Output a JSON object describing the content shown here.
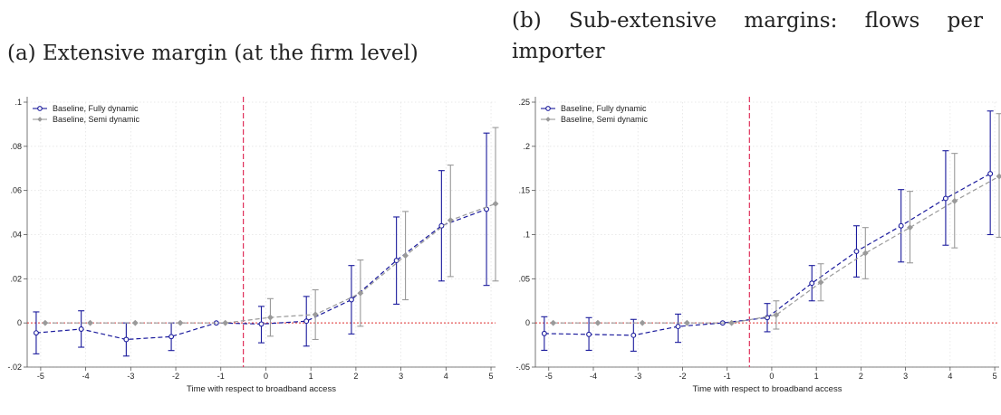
{
  "captions": {
    "a": "(a) Extensive margin (at the firm level)",
    "b": "(b) Sub-extensive margins: flows per importer"
  },
  "chart_data": [
    {
      "type": "line",
      "xlabel": "Time with respect to broadband access",
      "ylabel": "",
      "xlim": [
        -5.3,
        5.1
      ],
      "ylim": [
        -0.02,
        0.1
      ],
      "yticks": [
        -0.02,
        0,
        0.02,
        0.04,
        0.06,
        0.08,
        0.1
      ],
      "ytick_labels": [
        "-.02",
        "0",
        ".02",
        ".04",
        ".06",
        ".08",
        ".1"
      ],
      "xticks": [
        -5,
        -4,
        -3,
        -2,
        -1,
        0,
        1,
        2,
        3,
        4,
        5
      ],
      "xtick_labels": [
        "-5",
        "-4",
        "-3",
        "-2",
        "-1",
        "0",
        "1",
        "2",
        "3",
        "4",
        "5"
      ],
      "grid": true,
      "legend_position": "top-left",
      "event_line_x": -0.5,
      "zero_line_y": 0,
      "series": [
        {
          "name": "Baseline, Fully dynamic",
          "color": "#1a1a9c",
          "marker": "circle",
          "x": [
            -5.1,
            -4.1,
            -3.1,
            -2.1,
            -1.1,
            -0.1,
            0.9,
            1.9,
            2.9,
            3.9,
            4.9
          ],
          "y": [
            -0.0045,
            -0.0028,
            -0.0075,
            -0.0062,
            0.0,
            -0.0005,
            0.0008,
            0.0105,
            0.0283,
            0.044,
            0.0515
          ],
          "ci_low": [
            -0.014,
            -0.011,
            -0.015,
            -0.0125,
            0.0,
            -0.009,
            -0.0105,
            -0.005,
            0.0085,
            0.019,
            0.017
          ],
          "ci_high": [
            0.005,
            0.0055,
            0.0,
            0.0,
            0.0,
            0.0075,
            0.012,
            0.026,
            0.048,
            0.069,
            0.086
          ]
        },
        {
          "name": "Baseline, Semi dynamic",
          "color": "#9a9a9a",
          "marker": "diamond",
          "x": [
            -4.9,
            -3.9,
            -2.9,
            -1.9,
            -0.9,
            0.1,
            1.1,
            2.1,
            3.1,
            4.1,
            5.1
          ],
          "y": [
            0.0,
            0.0,
            0.0,
            0.0,
            0.0,
            0.0025,
            0.0038,
            0.0135,
            0.0305,
            0.0465,
            0.054
          ],
          "ci_low": [
            0.0,
            0.0,
            0.0,
            0.0,
            0.0,
            -0.006,
            -0.0075,
            -0.0015,
            0.0105,
            0.021,
            0.019
          ],
          "ci_high": [
            0.0,
            0.0,
            0.0,
            0.0,
            0.0,
            0.011,
            0.015,
            0.0285,
            0.0505,
            0.0715,
            0.0885
          ]
        }
      ]
    },
    {
      "type": "line",
      "xlabel": "Time with respect to broadband access",
      "ylabel": "",
      "xlim": [
        -5.3,
        5.1
      ],
      "ylim": [
        -0.05,
        0.25
      ],
      "yticks": [
        -0.05,
        0,
        0.05,
        0.1,
        0.15,
        0.2,
        0.25
      ],
      "ytick_labels": [
        "-.05",
        "0",
        ".05",
        ".1",
        ".15",
        ".2",
        ".25"
      ],
      "xticks": [
        -5,
        -4,
        -3,
        -2,
        -1,
        0,
        1,
        2,
        3,
        4,
        5
      ],
      "xtick_labels": [
        "-5",
        "-4",
        "-3",
        "-2",
        "-1",
        "0",
        "1",
        "2",
        "3",
        "4",
        "5"
      ],
      "grid": true,
      "legend_position": "top-left",
      "event_line_x": -0.5,
      "zero_line_y": 0,
      "series": [
        {
          "name": "Baseline, Fully dynamic",
          "color": "#1a1a9c",
          "marker": "circle",
          "x": [
            -5.1,
            -4.1,
            -3.1,
            -2.1,
            -1.1,
            -0.1,
            0.9,
            1.9,
            2.9,
            3.9,
            4.9
          ],
          "y": [
            -0.012,
            -0.013,
            -0.014,
            -0.004,
            0.0,
            0.006,
            0.045,
            0.081,
            0.11,
            0.141,
            0.169
          ],
          "ci_low": [
            -0.031,
            -0.031,
            -0.032,
            -0.022,
            0.0,
            -0.01,
            0.025,
            0.052,
            0.069,
            0.088,
            0.1
          ],
          "ci_high": [
            0.007,
            0.006,
            0.004,
            0.01,
            0.0,
            0.022,
            0.065,
            0.11,
            0.151,
            0.195,
            0.24
          ]
        },
        {
          "name": "Baseline, Semi dynamic",
          "color": "#9a9a9a",
          "marker": "diamond",
          "x": [
            -4.9,
            -3.9,
            -2.9,
            -1.9,
            -0.9,
            0.1,
            1.1,
            2.1,
            3.1,
            4.1,
            5.1
          ],
          "y": [
            0.0,
            0.0,
            0.0,
            0.0,
            0.0,
            0.009,
            0.046,
            0.079,
            0.108,
            0.138,
            0.166
          ],
          "ci_low": [
            0.0,
            0.0,
            0.0,
            0.0,
            0.0,
            -0.007,
            0.025,
            0.05,
            0.068,
            0.085,
            0.097
          ],
          "ci_high": [
            0.0,
            0.0,
            0.0,
            0.0,
            0.0,
            0.025,
            0.067,
            0.108,
            0.149,
            0.192,
            0.237
          ]
        }
      ]
    }
  ]
}
